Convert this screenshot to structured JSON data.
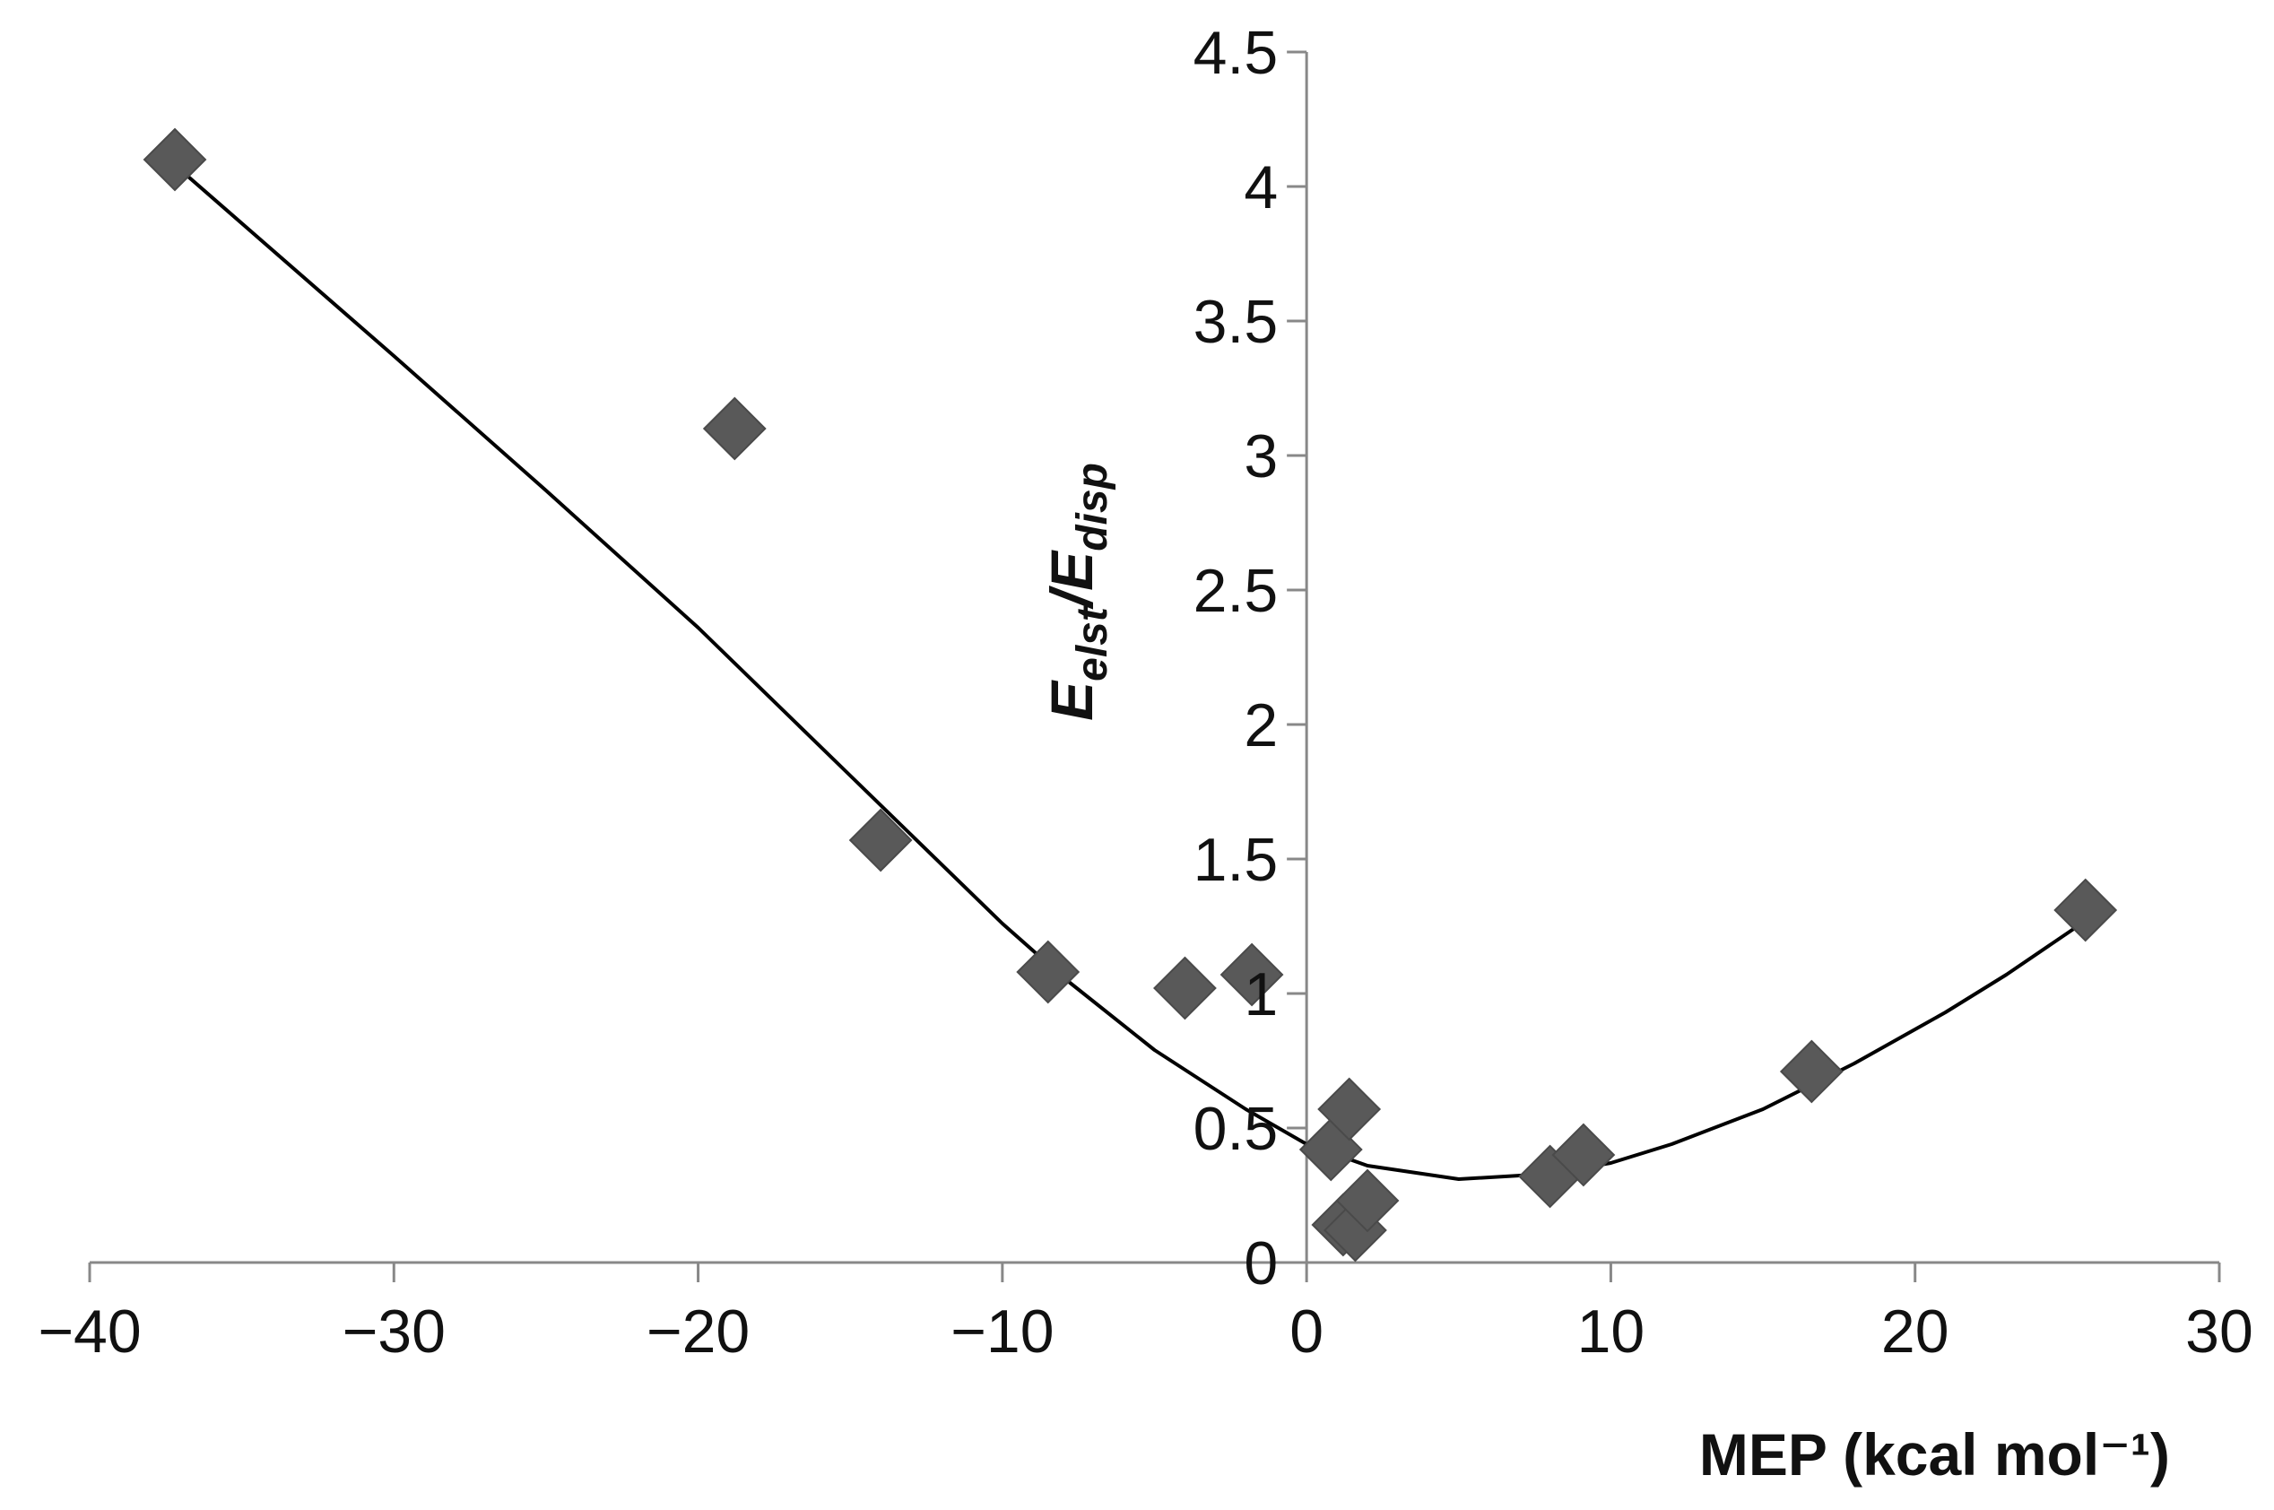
{
  "chart_data": {
    "type": "scatter",
    "title": "",
    "xlabel": "MEP (kcal mol⁻¹)",
    "ylabel": {
      "main1": "E",
      "sub1": "elst",
      "slash": "/",
      "main2": "E",
      "sub2": "disp"
    },
    "xlim": [
      -40,
      30
    ],
    "ylim": [
      0,
      4.5
    ],
    "x_ticks": [
      -40,
      -30,
      -20,
      -10,
      0,
      10,
      20,
      30
    ],
    "x_tick_labels": [
      "−40",
      "−30",
      "−20",
      "−10",
      "0",
      "10",
      "20",
      "30"
    ],
    "y_ticks": [
      0,
      0.5,
      1,
      1.5,
      2,
      2.5,
      3,
      3.5,
      4,
      4.5
    ],
    "y_tick_labels": [
      "0",
      "0.5",
      "1",
      "1.5",
      "2",
      "2.5",
      "3",
      "3.5",
      "4",
      "4.5"
    ],
    "grid": false,
    "legend": "none",
    "points": [
      {
        "x": -37.2,
        "y": 4.1
      },
      {
        "x": -18.8,
        "y": 3.1
      },
      {
        "x": -14.0,
        "y": 1.57
      },
      {
        "x": -8.5,
        "y": 1.08
      },
      {
        "x": -4.0,
        "y": 1.02
      },
      {
        "x": -1.8,
        "y": 1.07
      },
      {
        "x": 0.8,
        "y": 0.42
      },
      {
        "x": 1.4,
        "y": 0.57
      },
      {
        "x": 1.2,
        "y": 0.14
      },
      {
        "x": 1.6,
        "y": 0.12
      },
      {
        "x": 2.0,
        "y": 0.23
      },
      {
        "x": 8.0,
        "y": 0.32
      },
      {
        "x": 9.1,
        "y": 0.4
      },
      {
        "x": 16.6,
        "y": 0.71
      },
      {
        "x": 25.6,
        "y": 1.31
      }
    ],
    "trendline": [
      {
        "x": -37.2,
        "y": 4.08
      },
      {
        "x": -30,
        "y": 3.37
      },
      {
        "x": -25,
        "y": 2.87
      },
      {
        "x": -20,
        "y": 2.36
      },
      {
        "x": -15,
        "y": 1.81
      },
      {
        "x": -10,
        "y": 1.26
      },
      {
        "x": -8,
        "y": 1.06
      },
      {
        "x": -5,
        "y": 0.79
      },
      {
        "x": -2,
        "y": 0.57
      },
      {
        "x": 0,
        "y": 0.44
      },
      {
        "x": 2,
        "y": 0.36
      },
      {
        "x": 5,
        "y": 0.31
      },
      {
        "x": 8,
        "y": 0.33
      },
      {
        "x": 10,
        "y": 0.37
      },
      {
        "x": 12,
        "y": 0.44
      },
      {
        "x": 15,
        "y": 0.57
      },
      {
        "x": 18,
        "y": 0.74
      },
      {
        "x": 21,
        "y": 0.93
      },
      {
        "x": 23,
        "y": 1.07
      },
      {
        "x": 25.6,
        "y": 1.27
      }
    ],
    "colors": {
      "marker": "#595959",
      "line": "#000000",
      "axis": "#888888",
      "text": "#111111"
    }
  }
}
